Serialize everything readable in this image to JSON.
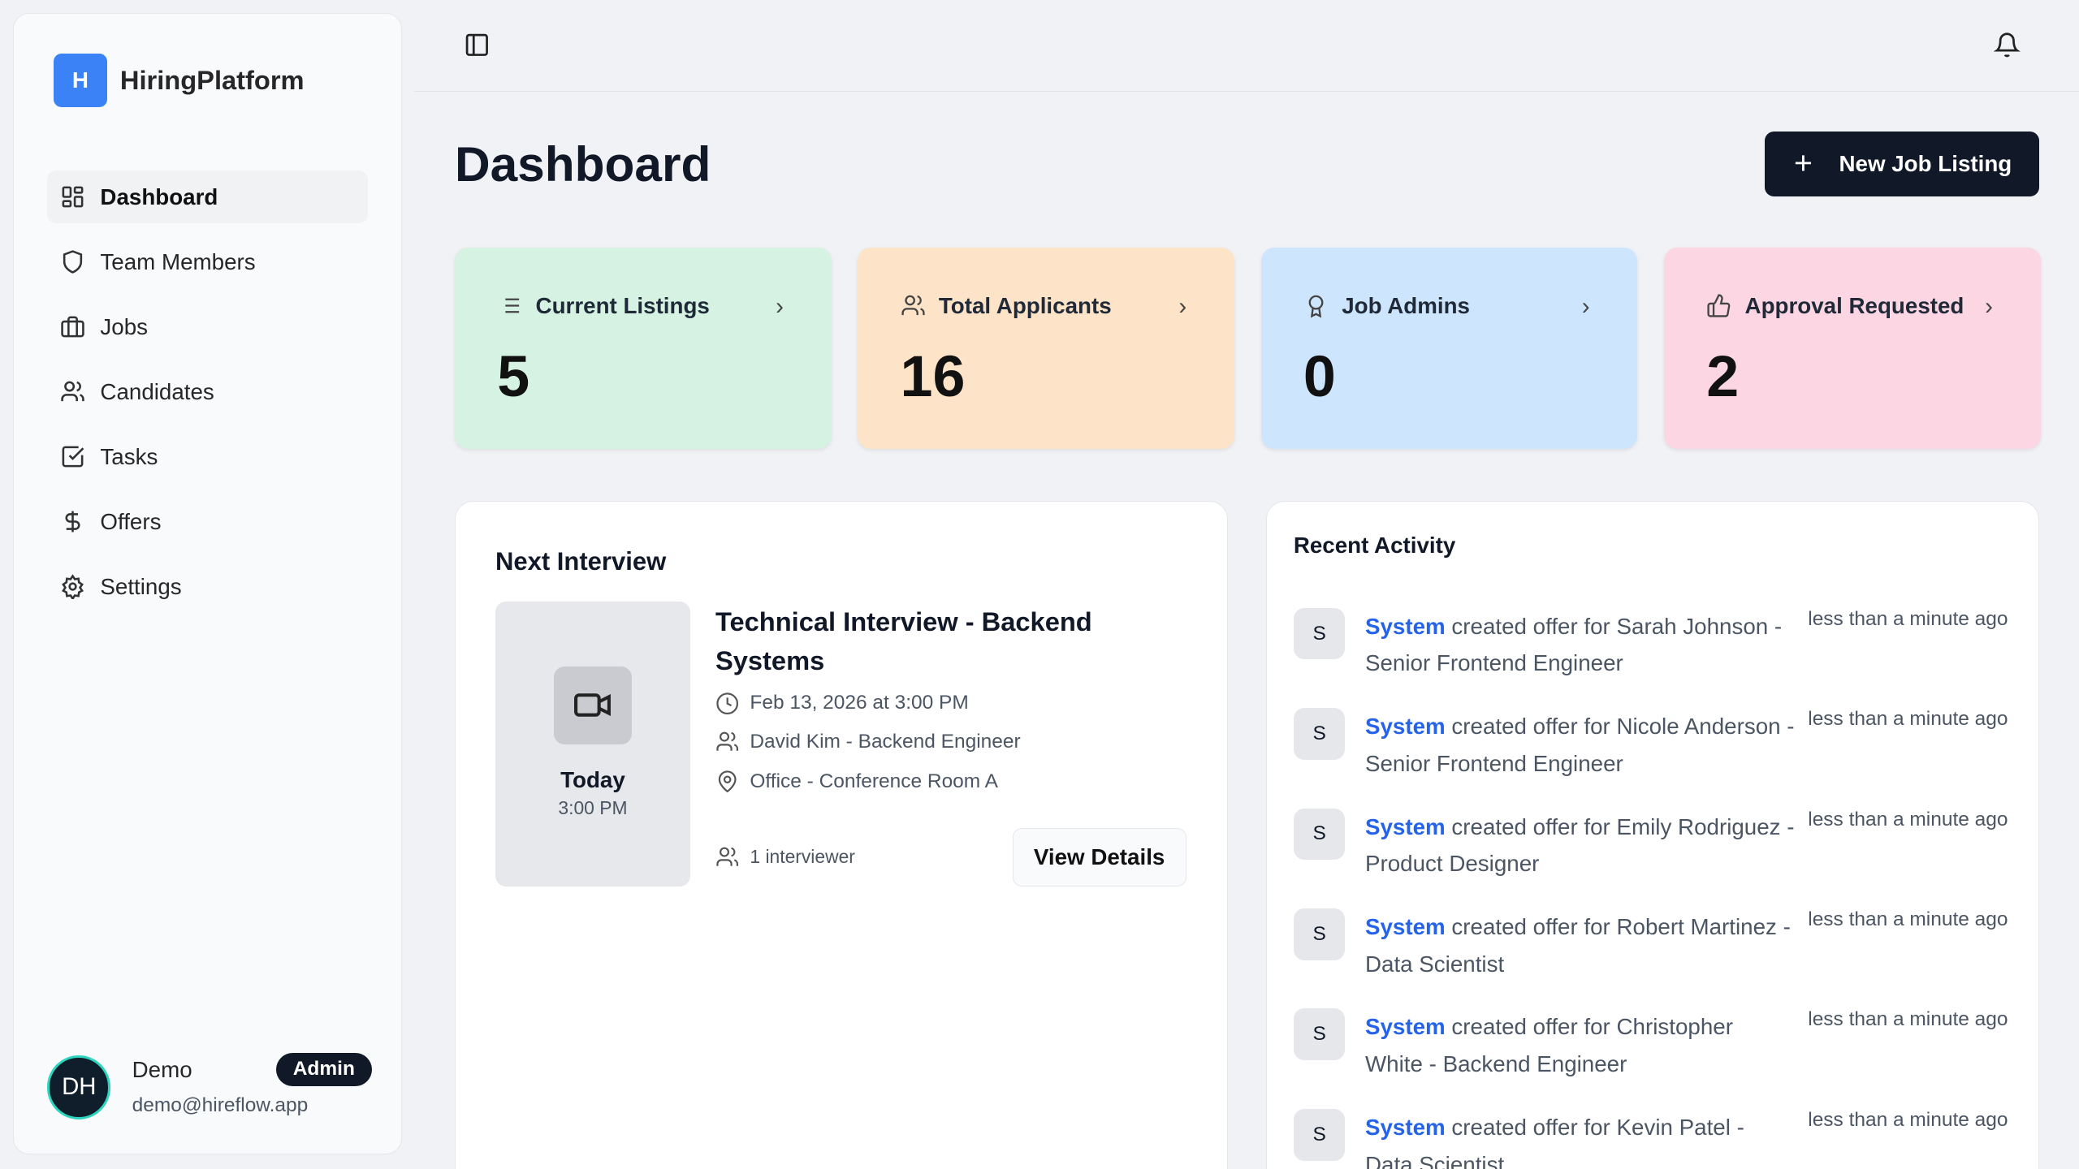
{
  "app": {
    "logo_letter": "H",
    "name": "HiringPlatform"
  },
  "sidebar": {
    "items": [
      {
        "label": "Dashboard",
        "icon": "layout-grid-icon",
        "active": true
      },
      {
        "label": "Team Members",
        "icon": "shield-icon"
      },
      {
        "label": "Jobs",
        "icon": "briefcase-icon"
      },
      {
        "label": "Candidates",
        "icon": "users-icon"
      },
      {
        "label": "Tasks",
        "icon": "square-check-icon"
      },
      {
        "label": "Offers",
        "icon": "dollar-icon"
      },
      {
        "label": "Settings",
        "icon": "gear-icon"
      }
    ]
  },
  "user": {
    "initials": "DH",
    "name": "Demo",
    "email": "demo@hireflow.app",
    "role": "Admin"
  },
  "header": {
    "title": "Dashboard",
    "new_button": "New Job Listing"
  },
  "stats": [
    {
      "label": "Current Listings",
      "value": "5",
      "color": "#d5f2e2",
      "icon": "list-icon"
    },
    {
      "label": "Total Applicants",
      "value": "16",
      "color": "#fde4c8",
      "icon": "users-icon"
    },
    {
      "label": "Job Admins",
      "value": "0",
      "color": "#cde6fd",
      "icon": "award-icon"
    },
    {
      "label": "Approval Requested",
      "value": "2",
      "color": "#fcd6e3",
      "icon": "thumbs-up-icon"
    }
  ],
  "next_interview": {
    "heading": "Next Interview",
    "day": "Today",
    "time": "3:00 PM",
    "title": "Technical Interview - Backend Systems",
    "datetime": "Feb 13, 2026 at 3:00 PM",
    "candidate": "David Kim - Backend Engineer",
    "location": "Office - Conference Room A",
    "interviewers": "1 interviewer",
    "button": "View Details"
  },
  "recent_activity": {
    "heading": "Recent Activity",
    "items": [
      {
        "avatar": "S",
        "actor": "System",
        "text": " created offer for Sarah Johnson - Senior Frontend Engineer",
        "time": "less than a minute ago"
      },
      {
        "avatar": "S",
        "actor": "System",
        "text": " created offer for Nicole Anderson - Senior Frontend Engineer",
        "time": "less than a minute ago"
      },
      {
        "avatar": "S",
        "actor": "System",
        "text": " created offer for Emily Rodriguez - Product Designer",
        "time": "less than a minute ago"
      },
      {
        "avatar": "S",
        "actor": "System",
        "text": " created offer for Robert Martinez - Data Scientist",
        "time": "less than a minute ago"
      },
      {
        "avatar": "S",
        "actor": "System",
        "text": " created offer for Christopher White - Backend Engineer",
        "time": "less than a minute ago"
      },
      {
        "avatar": "S",
        "actor": "System",
        "text": " created offer for Kevin Patel - Data Scientist",
        "time": "less than a minute ago"
      }
    ]
  }
}
